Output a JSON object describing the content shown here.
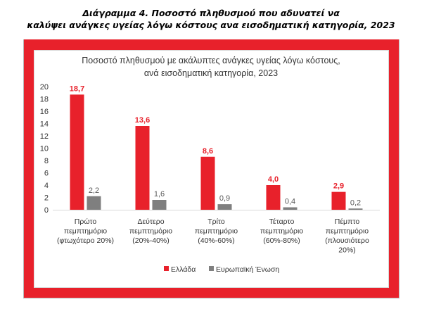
{
  "page": {
    "title_line1": "Διάγραμμα 4. Ποσοστό πληθυσμού που αδυνατεί να",
    "title_line2": "καλύψει ανάγκες υγείας λόγω κόστους ανα εισοδηματική κατηγορία, 2023"
  },
  "colors": {
    "frame": "#e8212b",
    "greece": "#e8212b",
    "eu": "#7f7f7f"
  },
  "chart_data": {
    "type": "bar",
    "title": [
      "Ποσοστό πληθυσμού με ακάλυπτες ανάγκες υγείας λόγω κόστους,",
      "ανά εισοδηματική κατηγορία, 2023"
    ],
    "categories": [
      [
        "Πρώτο",
        "πεμπτημόριο",
        "(φτωχότερο 20%)"
      ],
      [
        "Δεύτερο",
        "πεμπτημόριο",
        "(20%-40%)"
      ],
      [
        "Τρίτο",
        "πεμπτημόριο",
        "(40%-60%)"
      ],
      [
        "Τέταρτο",
        "πεμπτημόριο",
        "(60%-80%)"
      ],
      [
        "Πέμπτο",
        "πεμπτημόριο",
        "(πλουσιότερο",
        "20%)"
      ]
    ],
    "series": [
      {
        "name": "Ελλάδα",
        "values": [
          18.7,
          13.6,
          8.6,
          4.0,
          2.9
        ],
        "labels": [
          "18,7",
          "13,6",
          "8,6",
          "4,0",
          "2,9"
        ],
        "color": "#e8212b"
      },
      {
        "name": "Ευρωπαϊκή Ένωση",
        "values": [
          2.2,
          1.6,
          0.9,
          0.4,
          0.2
        ],
        "labels": [
          "2,2",
          "1,6",
          "0,9",
          "0,4",
          "0,2"
        ],
        "color": "#7f7f7f"
      }
    ],
    "ylim": [
      0,
      20
    ],
    "yticks": [
      0,
      2,
      4,
      6,
      8,
      10,
      12,
      14,
      16,
      18,
      20
    ],
    "legend": "bottom",
    "grid": false
  }
}
